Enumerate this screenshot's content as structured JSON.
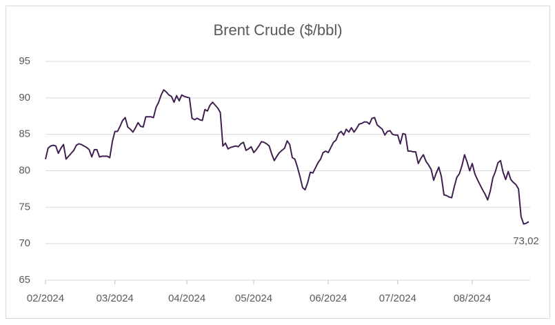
{
  "chart_data": {
    "type": "line",
    "title": "Brent Crude ($/bbl)",
    "categories": [
      "02/2024",
      null,
      null,
      null,
      null,
      null,
      null,
      null,
      null,
      null,
      null,
      null,
      null,
      null,
      null,
      null,
      null,
      null,
      null,
      null,
      null,
      null,
      null,
      null,
      null,
      null,
      null,
      "03/2024",
      null,
      null,
      null,
      null,
      null,
      null,
      null,
      null,
      null,
      null,
      null,
      null,
      null,
      null,
      null,
      null,
      null,
      null,
      null,
      null,
      null,
      null,
      null,
      null,
      null,
      null,
      null,
      "04/2024",
      null,
      null,
      null,
      null,
      null,
      null,
      null,
      null,
      null,
      null,
      null,
      null,
      null,
      null,
      null,
      null,
      null,
      null,
      null,
      null,
      null,
      null,
      null,
      null,
      null,
      "05/2024",
      null,
      null,
      null,
      null,
      null,
      null,
      null,
      null,
      null,
      null,
      null,
      null,
      null,
      null,
      null,
      null,
      null,
      null,
      null,
      null,
      null,
      null,
      null,
      null,
      null,
      null,
      null,
      null,
      "06/2024",
      null,
      null,
      null,
      null,
      null,
      null,
      null,
      null,
      null,
      null,
      null,
      null,
      null,
      null,
      null,
      null,
      null,
      null,
      null,
      null,
      null,
      null,
      null,
      null,
      null,
      null,
      "07/2024",
      null,
      null,
      null,
      null,
      null,
      null,
      null,
      null,
      null,
      null,
      null,
      null,
      null,
      null,
      null,
      null,
      null,
      null,
      null,
      null,
      null,
      null,
      null,
      null,
      null,
      null,
      null,
      null,
      "08/2024",
      null,
      null,
      null,
      null,
      null,
      null,
      null,
      null,
      null,
      null,
      null,
      null,
      null,
      null,
      null,
      null,
      null,
      null,
      null,
      null,
      null,
      null
    ],
    "series": [
      {
        "name": "Brent Crude",
        "color": "#3f1f4f",
        "values": [
          81.6,
          83.1,
          83.4,
          83.5,
          83.4,
          82.4,
          83.1,
          83.6,
          81.6,
          82.0,
          82.4,
          82.8,
          83.5,
          83.7,
          83.6,
          83.4,
          83.2,
          82.9,
          81.9,
          82.9,
          82.9,
          81.9,
          82.0,
          82.0,
          82.0,
          81.8,
          84.0,
          85.4,
          85.4,
          86.1,
          86.9,
          87.3,
          86.0,
          85.7,
          85.3,
          85.9,
          86.6,
          86.1,
          86.0,
          87.4,
          87.4,
          87.4,
          87.3,
          88.7,
          89.4,
          90.4,
          91.1,
          90.8,
          90.4,
          90.2,
          89.4,
          90.3,
          89.6,
          90.4,
          90.2,
          90.1,
          90.0,
          87.2,
          87.0,
          87.2,
          87.0,
          86.9,
          88.4,
          88.2,
          89.0,
          89.4,
          89.0,
          88.6,
          88.0,
          83.4,
          83.8,
          83.0,
          83.2,
          83.3,
          83.4,
          83.3,
          83.7,
          83.9,
          82.8,
          83.0,
          83.3,
          82.5,
          82.9,
          83.4,
          84.0,
          83.9,
          83.7,
          83.4,
          82.3,
          81.4,
          82.0,
          82.5,
          82.8,
          83.1,
          84.1,
          83.6,
          81.8,
          81.6,
          80.5,
          79.2,
          77.7,
          77.4,
          78.4,
          79.8,
          79.7,
          80.4,
          81.1,
          81.6,
          82.5,
          82.7,
          82.5,
          83.2,
          83.9,
          84.2,
          85.1,
          85.4,
          84.9,
          85.7,
          85.3,
          85.9,
          85.3,
          85.8,
          86.4,
          86.5,
          86.7,
          86.7,
          86.4,
          87.2,
          87.3,
          86.3,
          86.0,
          85.7,
          84.9,
          85.4,
          85.5,
          85.0,
          84.9,
          84.9,
          83.7,
          85.1,
          85.0,
          82.7,
          82.7,
          82.6,
          82.6,
          81.0,
          81.7,
          82.2,
          81.3,
          80.8,
          80.2,
          78.7,
          79.7,
          80.5,
          79.2,
          76.7,
          76.6,
          76.4,
          76.3,
          77.8,
          79.1,
          79.6,
          80.7,
          82.2,
          81.2,
          80.0,
          81.0,
          79.6,
          78.8,
          78.1,
          77.4,
          76.8,
          76.0,
          77.2,
          79.0,
          79.9,
          81.1,
          81.4,
          79.8,
          78.8,
          79.9,
          78.8,
          78.4,
          78.1,
          77.5,
          73.7,
          72.7,
          72.8,
          73.02
        ],
        "value_labels": [
          null,
          null,
          null,
          null,
          null,
          null,
          null,
          null,
          null,
          null,
          null,
          null,
          null,
          null,
          null,
          null,
          null,
          null,
          null,
          null,
          null,
          null,
          null,
          null,
          null,
          null,
          null,
          null,
          null,
          null,
          null,
          null,
          null,
          null,
          null,
          null,
          null,
          null,
          null,
          null,
          null,
          null,
          null,
          null,
          null,
          null,
          null,
          null,
          null,
          null,
          null,
          null,
          null,
          null,
          null,
          null,
          null,
          null,
          null,
          null,
          null,
          null,
          null,
          null,
          null,
          null,
          null,
          null,
          null,
          null,
          null,
          null,
          null,
          null,
          null,
          null,
          null,
          null,
          null,
          null,
          null,
          null,
          null,
          null,
          null,
          null,
          null,
          null,
          null,
          null,
          null,
          null,
          null,
          null,
          null,
          null,
          null,
          null,
          null,
          null,
          null,
          null,
          null,
          null,
          null,
          null,
          null,
          null,
          null,
          null,
          null,
          null,
          null,
          null,
          null,
          null,
          null,
          null,
          null,
          null,
          null,
          null,
          null,
          null,
          null,
          null,
          null,
          null,
          null,
          null,
          null,
          null,
          null,
          null,
          null,
          null,
          null,
          null,
          null,
          null,
          null,
          null,
          null,
          null,
          null,
          null,
          null,
          null,
          null,
          null,
          null,
          null,
          null,
          null,
          null,
          null,
          null,
          null,
          null,
          null,
          null,
          null,
          null,
          null,
          null,
          null,
          null,
          null,
          null,
          null,
          null,
          null,
          null,
          null,
          null,
          null,
          null,
          null,
          null,
          null,
          null,
          null,
          null,
          null,
          null,
          null,
          null,
          null,
          "73,02"
        ]
      }
    ],
    "ylim": [
      65,
      95
    ],
    "yticks": [
      65,
      70,
      75,
      80,
      85,
      90,
      95
    ],
    "grid": true
  }
}
